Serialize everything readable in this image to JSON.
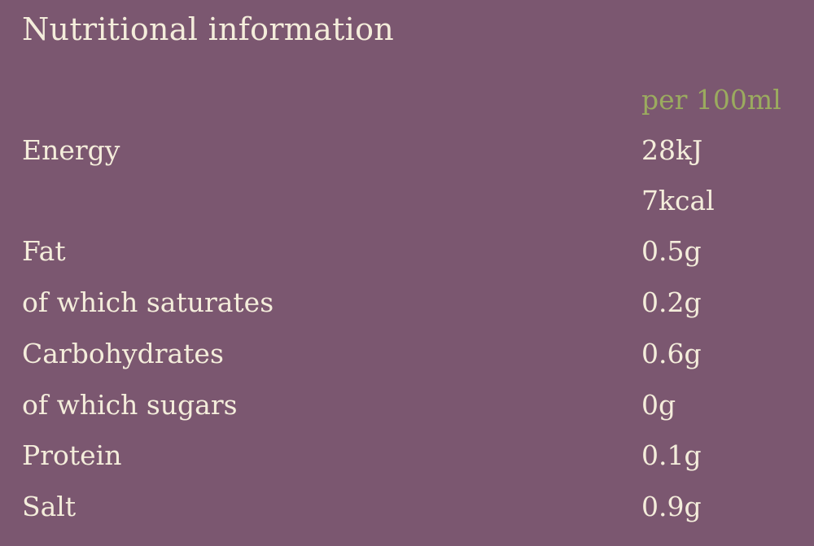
{
  "title": "Nutritional information",
  "column_header": "per 100ml",
  "colors": {
    "background": "#7b5770",
    "text": "#f4eddb",
    "header": "#9bab5f"
  },
  "rows": [
    {
      "label": "Energy",
      "value": "28kJ"
    },
    {
      "label": "",
      "value": "7kcal"
    },
    {
      "label": "Fat",
      "value": "0.5g"
    },
    {
      "label": "of which saturates",
      "value": "0.2g"
    },
    {
      "label": "Carbohydrates",
      "value": "0.6g"
    },
    {
      "label": "of which sugars",
      "value": "0g"
    },
    {
      "label": "Protein",
      "value": "0.1g"
    },
    {
      "label": "Salt",
      "value": "0.9g"
    }
  ]
}
